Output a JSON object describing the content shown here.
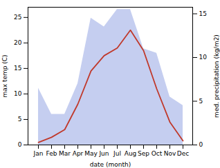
{
  "chart_data": {
    "type": "line",
    "xlabel": "date (month)",
    "ylabel": "max temp (C)",
    "y2label": "med. precipitation (kg/m2)",
    "categories": [
      "Jan",
      "Feb",
      "Mar",
      "Apr",
      "May",
      "Jun",
      "Jul",
      "Aug",
      "Sep",
      "Oct",
      "Nov",
      "Dec"
    ],
    "series": [
      {
        "type": "area",
        "axis": "y2",
        "color": "#c5cef0",
        "values": [
          6.5,
          3.5,
          3.5,
          7.0,
          14.5,
          13.5,
          15.5,
          15.5,
          11.0,
          10.5,
          5.5,
          4.5
        ]
      },
      {
        "type": "line",
        "color": "#c0392b",
        "values": [
          0.5,
          1.5,
          3.0,
          8.0,
          14.5,
          17.5,
          19.0,
          22.5,
          18.5,
          11.0,
          4.5,
          0.8
        ]
      }
    ],
    "ylim": [
      0,
      27
    ],
    "yticks": [
      0,
      5,
      10,
      15,
      20,
      25
    ],
    "y2lim": [
      0,
      15.75
    ],
    "y2ticks": [
      0,
      5,
      10,
      15
    ],
    "grid": false
  }
}
